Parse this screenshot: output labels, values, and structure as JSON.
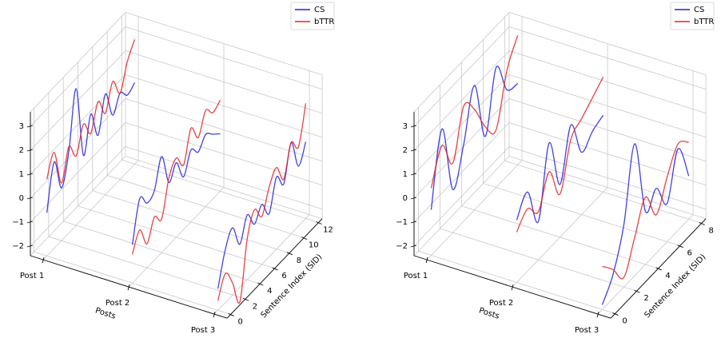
{
  "chart_data": [
    {
      "type": "line3d",
      "categories": [
        "Post 1",
        "Post 2",
        "Post 3"
      ],
      "category_label": "Posts",
      "x": [
        0,
        1,
        2,
        3,
        4,
        5,
        6,
        7,
        8,
        9,
        10,
        11,
        12
      ],
      "xlabel": "Sentence Index (SID)",
      "xlim": [
        -0.5,
        12.5
      ],
      "xticks": [
        0,
        2,
        4,
        6,
        8,
        10,
        12
      ],
      "zlim": [
        -2.4,
        3.6
      ],
      "zticks": [
        {
          "value": -2,
          "label": "−2"
        },
        {
          "value": -1,
          "label": "−1"
        },
        0,
        1,
        2,
        3
      ],
      "grid": true,
      "legend": "upper right",
      "series": [
        {
          "name": "CS",
          "color": "#2020e0",
          "values": [
            [
              -0.6,
              1.2,
              -0.2,
              1.0,
              3.3,
              0.2,
              1.6,
              0.4,
              1.8,
              0.6,
              1.2,
              0.8,
              1.0
            ],
            [
              -0.8,
              0.8,
              0.3,
              0.5,
              1.6,
              0.2,
              0.7,
              -0.2,
              0.6,
              0.2,
              0.6,
              0.3,
              0.0
            ],
            [
              -1.5,
              -0.2,
              0.4,
              -0.6,
              0.3,
              -0.4,
              0.1,
              -0.6,
              0.6,
              0.0,
              1.4,
              0.1,
              0.8
            ]
          ]
        },
        {
          "name": "bTTR",
          "color": "#e82020",
          "values": [
            [
              0.8,
              1.6,
              0.0,
              1.2,
              0.5,
              1.5,
              0.8,
              1.8,
              1.0,
              2.0,
              1.2,
              2.2,
              2.8
            ],
            [
              -1.2,
              -0.5,
              -1.4,
              -0.6,
              -1.0,
              0.4,
              0.9,
              0.3,
              1.5,
              0.8,
              1.6,
              1.2,
              1.4
            ],
            [
              -2.0,
              -1.2,
              -1.9,
              -3.0,
              -0.7,
              0.2,
              -0.4,
              0.5,
              1.0,
              0.2,
              1.4,
              0.9,
              2.4
            ]
          ]
        }
      ]
    },
    {
      "type": "line3d",
      "categories": [
        "Post 1",
        "Post 2",
        "Post 3"
      ],
      "category_label": "Posts",
      "x": [
        0,
        1,
        2,
        3,
        4,
        5,
        6,
        7,
        8
      ],
      "xlabel": "Sentence Index (SID)",
      "xlim": [
        -0.4,
        8.4
      ],
      "xticks": [
        0,
        2,
        4,
        6,
        8
      ],
      "zlim": [
        -2.4,
        3.6
      ],
      "zticks": [
        {
          "value": -2,
          "label": "−2"
        },
        {
          "value": -1,
          "label": "−1"
        },
        0,
        1,
        2,
        3
      ],
      "grid": true,
      "legend": "upper right",
      "series": [
        {
          "name": "CS",
          "color": "#2020e0",
          "values": [
            [
              -0.5,
              2.4,
              -0.6,
              0.8,
              2.8,
              0.2,
              2.6,
              1.2,
              1.0
            ],
            [
              0.2,
              0.9,
              -0.8,
              2.0,
              -0.2,
              1.8,
              0.2,
              0.6,
              0.8
            ],
            [
              -2.2,
              -1.4,
              0.2,
              3.1,
              -0.2,
              0.3,
              -0.8,
              1.0,
              -0.6
            ]
          ]
        },
        {
          "name": "bTTR",
          "color": "#e82020",
          "values": [
            [
              0.4,
              1.7,
              0.5,
              2.4,
              1.8,
              0.6,
              0.0,
              2.0,
              3.0
            ],
            [
              -0.3,
              0.2,
              -0.4,
              0.8,
              -0.6,
              1.2,
              1.6,
              2.0,
              2.4
            ],
            [
              -0.6,
              -1.2,
              -2.0,
              -0.8,
              0.4,
              -0.8,
              0.3,
              1.2,
              0.8
            ]
          ]
        }
      ]
    }
  ]
}
